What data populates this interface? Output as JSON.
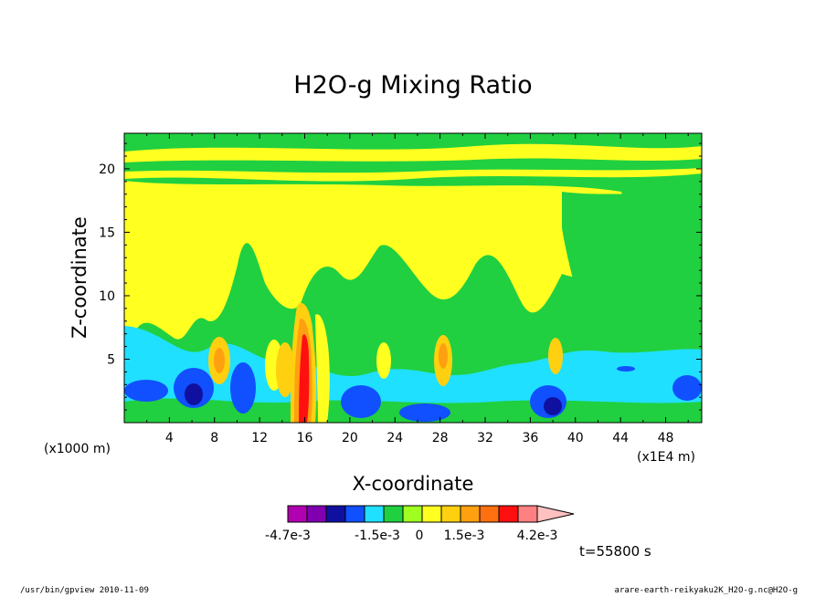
{
  "chart_data": {
    "type": "heatmap",
    "title": "H2O-g Mixing Ratio",
    "xlabel": "X-coordinate",
    "ylabel": "Z-coordinate",
    "x_unit_left": "(x1000 m)",
    "x_unit_right": "(x1E4 m)",
    "x_ticks": [
      "4",
      "8",
      "12",
      "16",
      "20",
      "24",
      "28",
      "32",
      "36",
      "40",
      "44",
      "48"
    ],
    "y_ticks": [
      "5",
      "10",
      "15",
      "20"
    ],
    "xlim": [
      0,
      51.2
    ],
    "ylim": [
      0,
      22.8
    ],
    "colorbar": {
      "colors": [
        "#b000b0",
        "#8000b0",
        "#1010a0",
        "#1050ff",
        "#20e0ff",
        "#20d040",
        "#a0ff20",
        "#ffff20",
        "#ffd010",
        "#ffa010",
        "#ff7010",
        "#ff1010",
        "#ff8080",
        "#ffc0c0"
      ],
      "labels": [
        "-4.7e-3",
        "-1.5e-3",
        "0",
        "1.5e-3",
        "4.2e-3"
      ]
    },
    "time_label": "t=55800 s",
    "footer_left": "/usr/bin/gpview   2010-11-09",
    "footer_right": "arare-earth-reikyaku2K_H2O-g.nc@H2O-g"
  }
}
